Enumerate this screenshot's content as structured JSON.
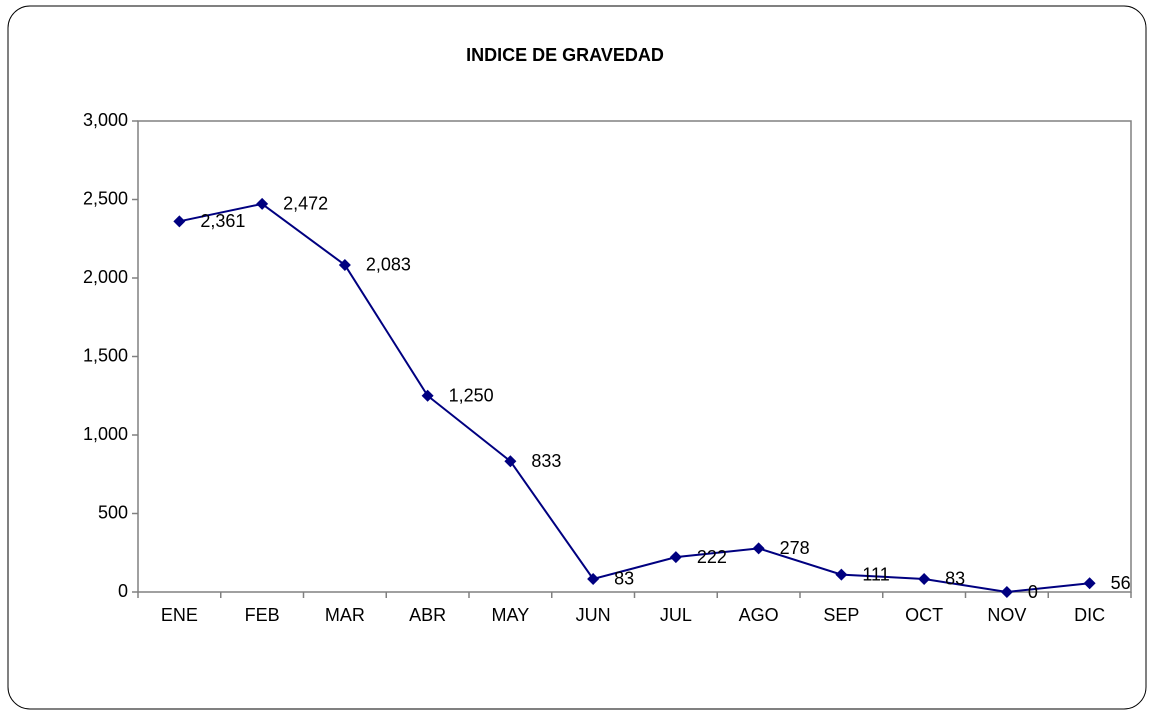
{
  "chart_data": {
    "type": "line",
    "title": "INDICE DE GRAVEDAD",
    "categories": [
      "ENE",
      "FEB",
      "MAR",
      "ABR",
      "MAY",
      "JUN",
      "JUL",
      "AGO",
      "SEP",
      "OCT",
      "NOV",
      "DIC"
    ],
    "series": [
      {
        "name": "INDICE DE GRAVEDAD",
        "color": "#000080",
        "values": [
          2361,
          2472,
          2083,
          1250,
          833,
          83,
          222,
          278,
          111,
          83,
          0,
          56
        ],
        "value_labels": [
          "2,361",
          "2,472",
          "2,083",
          "1,250",
          "833",
          "83",
          "222",
          "278",
          "111",
          "83",
          "0",
          "56"
        ]
      }
    ],
    "ylim": [
      0,
      3000
    ],
    "yticks": [
      0,
      500,
      {
        "value": 1000,
        "label": "1,000"
      },
      {
        "value": 1500,
        "label": "1,500"
      },
      {
        "value": 2000,
        "label": "2,000"
      },
      {
        "value": 2500,
        "label": "2,500"
      },
      {
        "value": 3000,
        "label": "3,000"
      }
    ],
    "grid": false,
    "legend": false
  }
}
